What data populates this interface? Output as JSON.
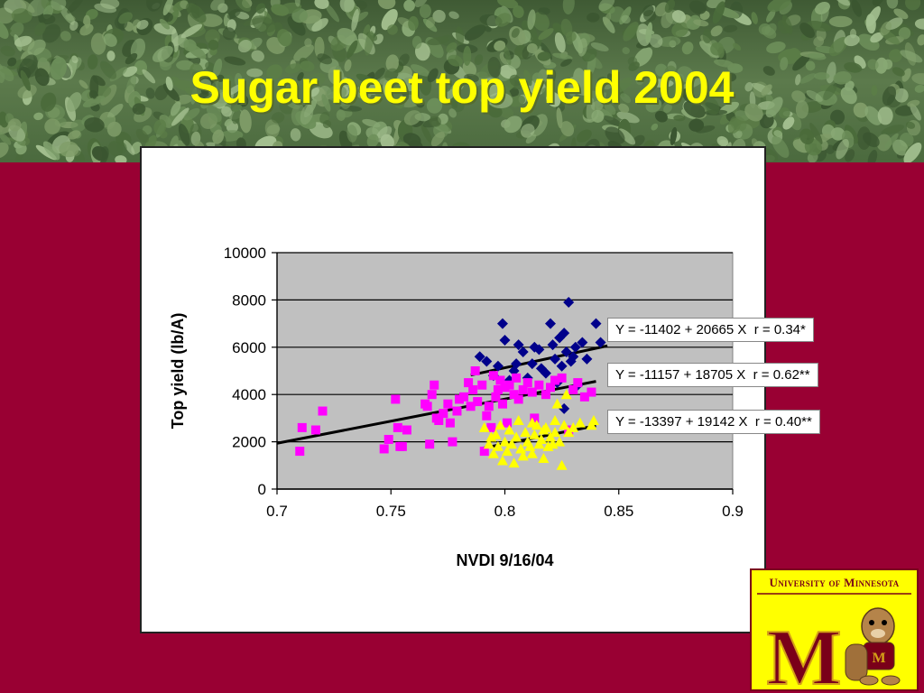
{
  "slide": {
    "title": "Sugar beet top yield 2004"
  },
  "colors": {
    "background": "#990033",
    "title": "#FFFF00",
    "plot_area": "#C0C0C0",
    "series1": "#00008B",
    "series2": "#FF00FF",
    "series3": "#FFFF00",
    "trend": "#000000"
  },
  "logo": {
    "text": "University of Minnesota",
    "letter": "M"
  },
  "chart_data": {
    "type": "scatter",
    "xlabel": "NVDI 9/16/04",
    "ylabel": "Top yield (lb/A)",
    "xlim": [
      0.7,
      0.9
    ],
    "ylim": [
      0,
      10000
    ],
    "xticks": [
      "0.7",
      "0.75",
      "0.8",
      "0.85",
      "0.9"
    ],
    "yticks": [
      "0",
      "2000",
      "4000",
      "6000",
      "8000",
      "10000"
    ],
    "grid": "horizontal",
    "equations": [
      "Y = -11402 + 20665 X  r = 0.34*",
      "Y = -11157 + 18705 X  r = 0.62**",
      "Y = -13397 + 19142 X  r = 0.40**"
    ],
    "series": [
      {
        "marker": "diamond",
        "color": "#00008B",
        "trend": {
          "x": [
            0.785,
            0.845
          ]
        },
        "points": [
          [
            0.789,
            5600
          ],
          [
            0.792,
            5400
          ],
          [
            0.795,
            4800
          ],
          [
            0.797,
            5200
          ],
          [
            0.799,
            7000
          ],
          [
            0.8,
            6300
          ],
          [
            0.802,
            4600
          ],
          [
            0.804,
            5000
          ],
          [
            0.806,
            6100
          ],
          [
            0.808,
            5800
          ],
          [
            0.81,
            4700
          ],
          [
            0.812,
            5300
          ],
          [
            0.813,
            6000
          ],
          [
            0.815,
            5900
          ],
          [
            0.816,
            5100
          ],
          [
            0.818,
            4900
          ],
          [
            0.82,
            7000
          ],
          [
            0.821,
            6100
          ],
          [
            0.822,
            5500
          ],
          [
            0.823,
            4500
          ],
          [
            0.824,
            6400
          ],
          [
            0.825,
            5200
          ],
          [
            0.826,
            6600
          ],
          [
            0.827,
            5800
          ],
          [
            0.828,
            7900
          ],
          [
            0.829,
            5400
          ],
          [
            0.83,
            5600
          ],
          [
            0.831,
            6000
          ],
          [
            0.832,
            4400
          ],
          [
            0.834,
            6200
          ],
          [
            0.836,
            5500
          ],
          [
            0.84,
            7000
          ],
          [
            0.842,
            6200
          ],
          [
            0.826,
            3400
          ],
          [
            0.805,
            5300
          ]
        ]
      },
      {
        "marker": "square",
        "color": "#FF00FF",
        "trend": {
          "x": [
            0.7,
            0.84
          ]
        },
        "points": [
          [
            0.71,
            1600
          ],
          [
            0.711,
            2600
          ],
          [
            0.717,
            2500
          ],
          [
            0.72,
            3300
          ],
          [
            0.747,
            1700
          ],
          [
            0.749,
            2100
          ],
          [
            0.752,
            3800
          ],
          [
            0.753,
            2600
          ],
          [
            0.754,
            1800
          ],
          [
            0.755,
            1800
          ],
          [
            0.757,
            2500
          ],
          [
            0.765,
            3600
          ],
          [
            0.766,
            3500
          ],
          [
            0.767,
            1900
          ],
          [
            0.768,
            4000
          ],
          [
            0.769,
            4400
          ],
          [
            0.77,
            3000
          ],
          [
            0.771,
            2900
          ],
          [
            0.773,
            3200
          ],
          [
            0.775,
            3600
          ],
          [
            0.776,
            2800
          ],
          [
            0.777,
            2000
          ],
          [
            0.779,
            3300
          ],
          [
            0.78,
            3800
          ],
          [
            0.782,
            3900
          ],
          [
            0.784,
            4500
          ],
          [
            0.785,
            3500
          ],
          [
            0.786,
            4200
          ],
          [
            0.787,
            5000
          ],
          [
            0.788,
            3700
          ],
          [
            0.79,
            4400
          ],
          [
            0.791,
            1600
          ],
          [
            0.792,
            3100
          ],
          [
            0.793,
            3500
          ],
          [
            0.794,
            2600
          ],
          [
            0.795,
            4800
          ],
          [
            0.796,
            3900
          ],
          [
            0.797,
            4200
          ],
          [
            0.798,
            4600
          ],
          [
            0.799,
            3600
          ],
          [
            0.8,
            4300
          ],
          [
            0.801,
            2800
          ],
          [
            0.802,
            4400
          ],
          [
            0.804,
            4000
          ],
          [
            0.805,
            4700
          ],
          [
            0.806,
            3800
          ],
          [
            0.808,
            4200
          ],
          [
            0.81,
            4500
          ],
          [
            0.812,
            4100
          ],
          [
            0.813,
            3000
          ],
          [
            0.815,
            4400
          ],
          [
            0.818,
            4000
          ],
          [
            0.82,
            4300
          ],
          [
            0.822,
            4600
          ],
          [
            0.825,
            4700
          ],
          [
            0.828,
            2500
          ],
          [
            0.83,
            4200
          ],
          [
            0.832,
            4500
          ],
          [
            0.835,
            3900
          ],
          [
            0.838,
            4100
          ]
        ]
      },
      {
        "marker": "triangle",
        "color": "#FFFF00",
        "trend": {
          "x": [
            0.79,
            0.84
          ]
        },
        "points": [
          [
            0.791,
            2600
          ],
          [
            0.793,
            1900
          ],
          [
            0.794,
            2200
          ],
          [
            0.795,
            1500
          ],
          [
            0.796,
            2300
          ],
          [
            0.797,
            1800
          ],
          [
            0.798,
            2700
          ],
          [
            0.799,
            1200
          ],
          [
            0.8,
            2000
          ],
          [
            0.801,
            1600
          ],
          [
            0.802,
            2500
          ],
          [
            0.803,
            1900
          ],
          [
            0.804,
            1100
          ],
          [
            0.805,
            2200
          ],
          [
            0.806,
            2900
          ],
          [
            0.807,
            1700
          ],
          [
            0.808,
            1400
          ],
          [
            0.809,
            2400
          ],
          [
            0.81,
            2000
          ],
          [
            0.811,
            1800
          ],
          [
            0.812,
            1500
          ],
          [
            0.813,
            2300
          ],
          [
            0.814,
            2700
          ],
          [
            0.815,
            1900
          ],
          [
            0.816,
            2100
          ],
          [
            0.817,
            1300
          ],
          [
            0.818,
            2600
          ],
          [
            0.819,
            1800
          ],
          [
            0.82,
            2200
          ],
          [
            0.821,
            1900
          ],
          [
            0.822,
            2400
          ],
          [
            0.823,
            3600
          ],
          [
            0.824,
            2000
          ],
          [
            0.825,
            1000
          ],
          [
            0.826,
            2700
          ],
          [
            0.827,
            4000
          ],
          [
            0.828,
            2400
          ],
          [
            0.83,
            2600
          ],
          [
            0.833,
            2800
          ],
          [
            0.838,
            2700
          ],
          [
            0.839,
            2900
          ],
          [
            0.812,
            2800
          ],
          [
            0.817,
            2500
          ],
          [
            0.822,
            2900
          ]
        ]
      }
    ]
  }
}
